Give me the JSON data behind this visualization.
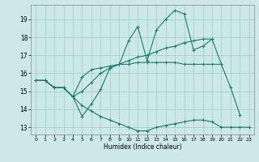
{
  "xlabel": "Humidex (Indice chaleur)",
  "bg_color": "#cde8e8",
  "grid_color": "#aacfcf",
  "line_color": "#1a7a6e",
  "yticks": [
    13,
    14,
    15,
    16,
    17,
    18,
    19
  ],
  "ylim": [
    12.6,
    19.8
  ],
  "xlim": [
    -0.5,
    23.5
  ],
  "series": [
    {
      "x": [
        0,
        1,
        2,
        3,
        4,
        5,
        6,
        7,
        8,
        9,
        10,
        11,
        12,
        13,
        14,
        15,
        16,
        17,
        18,
        19,
        20,
        21,
        22
      ],
      "y": [
        15.6,
        15.6,
        15.2,
        15.2,
        14.7,
        13.6,
        14.3,
        15.1,
        16.3,
        16.5,
        17.8,
        18.6,
        16.7,
        18.4,
        19.0,
        19.5,
        19.3,
        17.3,
        17.5,
        17.9,
        16.5,
        15.2,
        13.7
      ]
    },
    {
      "x": [
        0,
        1,
        2,
        3,
        4,
        5,
        6,
        7,
        8,
        9,
        10,
        11,
        12,
        13,
        14,
        15,
        16,
        17,
        18,
        19
      ],
      "y": [
        15.6,
        15.6,
        15.2,
        15.2,
        14.7,
        15.0,
        15.5,
        16.0,
        16.3,
        16.5,
        16.7,
        16.9,
        17.0,
        17.2,
        17.4,
        17.5,
        17.7,
        17.8,
        17.9,
        17.9
      ]
    },
    {
      "x": [
        0,
        1,
        2,
        3,
        4,
        5,
        6,
        7,
        8,
        9,
        10,
        11,
        12,
        13,
        14,
        15,
        16,
        17,
        18,
        19,
        20
      ],
      "y": [
        15.6,
        15.6,
        15.2,
        15.2,
        14.7,
        15.8,
        16.2,
        16.3,
        16.4,
        16.5,
        16.5,
        16.6,
        16.6,
        16.6,
        16.6,
        16.6,
        16.5,
        16.5,
        16.5,
        16.5,
        16.5
      ]
    },
    {
      "x": [
        0,
        1,
        2,
        3,
        4,
        5,
        6,
        7,
        8,
        9,
        10,
        11,
        12,
        13,
        14,
        15,
        16,
        17,
        18,
        19,
        20,
        21,
        22,
        23
      ],
      "y": [
        15.6,
        15.6,
        15.2,
        15.2,
        14.7,
        14.2,
        13.9,
        13.6,
        13.4,
        13.2,
        13.0,
        12.8,
        12.8,
        13.0,
        13.1,
        13.2,
        13.3,
        13.4,
        13.4,
        13.3,
        13.0,
        13.0,
        13.0,
        13.0
      ]
    }
  ]
}
